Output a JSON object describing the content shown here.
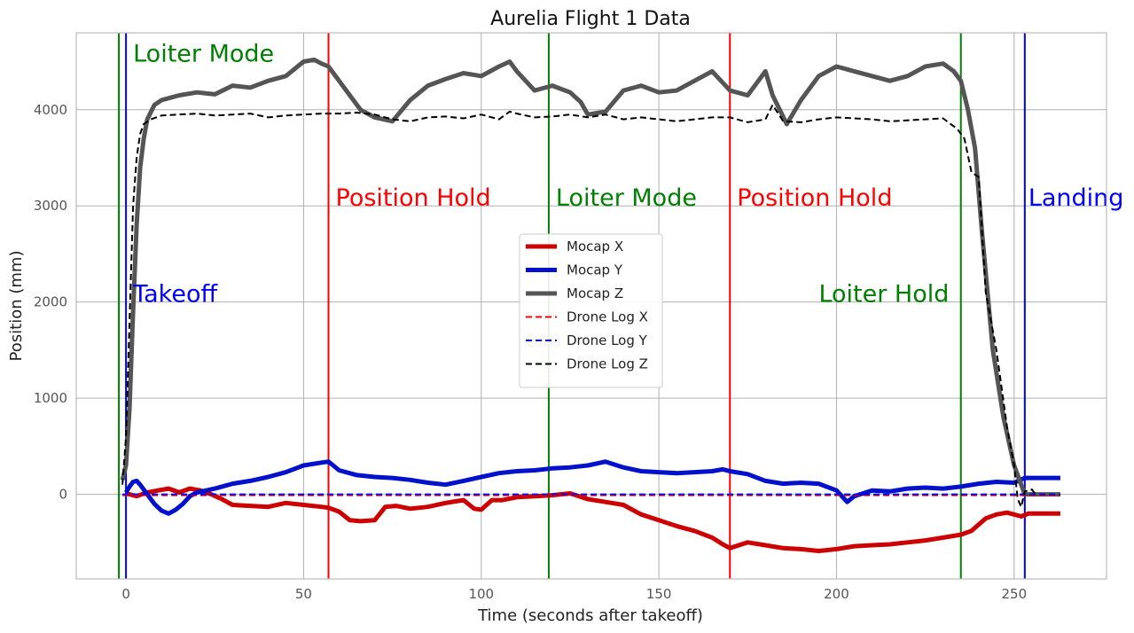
{
  "chart_data": {
    "type": "line",
    "title": "Aurelia Flight 1 Data",
    "xlabel": "Time (seconds after takeoff)",
    "ylabel": "Position (mm)",
    "xlim": [
      -14,
      276
    ],
    "ylim": [
      -880,
      4800
    ],
    "xticks": [
      0,
      50,
      100,
      150,
      200,
      250
    ],
    "yticks": [
      0,
      1000,
      2000,
      3000,
      4000
    ],
    "grid": true,
    "legend_position": "center",
    "series": [
      {
        "name": "Mocap X",
        "color": "#cc0000",
        "style": "solid",
        "width": 5,
        "x": [
          0,
          3,
          6,
          9,
          12,
          15,
          18,
          21,
          24,
          27,
          30,
          35,
          40,
          45,
          50,
          55,
          57,
          60,
          63,
          66,
          70,
          73,
          76,
          80,
          85,
          90,
          95,
          98,
          100,
          103,
          106,
          110,
          115,
          120,
          125,
          130,
          135,
          140,
          145,
          150,
          155,
          160,
          165,
          168,
          170,
          175,
          180,
          185,
          190,
          195,
          200,
          205,
          210,
          215,
          220,
          225,
          230,
          235,
          238,
          242,
          245,
          248,
          250,
          252,
          254,
          256,
          263
        ],
        "y": [
          10,
          -20,
          20,
          40,
          60,
          20,
          60,
          40,
          0,
          -50,
          -110,
          -120,
          -130,
          -90,
          -110,
          -130,
          -140,
          -180,
          -270,
          -280,
          -270,
          -130,
          -120,
          -150,
          -130,
          -90,
          -60,
          -150,
          -160,
          -60,
          -60,
          -30,
          -20,
          -10,
          10,
          -50,
          -80,
          -110,
          -210,
          -270,
          -330,
          -380,
          -450,
          -520,
          -560,
          -500,
          -530,
          -560,
          -570,
          -590,
          -570,
          -540,
          -530,
          -520,
          -500,
          -480,
          -450,
          -420,
          -380,
          -250,
          -210,
          -190,
          -210,
          -230,
          -200,
          -200,
          -200
        ]
      },
      {
        "name": "Mocap Y",
        "color": "#0011cc",
        "style": "solid",
        "width": 5,
        "x": [
          0,
          1,
          2,
          3,
          4,
          6,
          8,
          10,
          12,
          14,
          16,
          18,
          20,
          25,
          30,
          35,
          40,
          45,
          50,
          55,
          57,
          60,
          65,
          70,
          75,
          80,
          85,
          90,
          95,
          100,
          105,
          110,
          115,
          120,
          125,
          130,
          135,
          140,
          145,
          150,
          155,
          160,
          165,
          168,
          170,
          175,
          180,
          185,
          190,
          195,
          200,
          203,
          205,
          210,
          215,
          220,
          225,
          230,
          235,
          240,
          245,
          250,
          253,
          256,
          263
        ],
        "y": [
          20,
          80,
          130,
          140,
          100,
          0,
          -100,
          -170,
          -200,
          -160,
          -100,
          -20,
          20,
          60,
          110,
          140,
          180,
          230,
          300,
          330,
          340,
          250,
          200,
          180,
          170,
          150,
          120,
          100,
          140,
          180,
          220,
          240,
          250,
          270,
          280,
          300,
          340,
          280,
          240,
          230,
          220,
          230,
          240,
          260,
          240,
          210,
          140,
          110,
          120,
          110,
          40,
          -80,
          -20,
          40,
          30,
          60,
          70,
          60,
          80,
          110,
          130,
          120,
          170,
          170,
          170
        ]
      },
      {
        "name": "Mocap Z",
        "color": "#555555",
        "style": "solid",
        "width": 5,
        "x": [
          -1,
          0,
          1,
          2,
          3,
          4,
          5,
          6,
          8,
          10,
          15,
          20,
          25,
          30,
          35,
          40,
          45,
          50,
          53,
          55,
          57,
          60,
          63,
          66,
          70,
          75,
          80,
          85,
          90,
          95,
          100,
          105,
          108,
          110,
          115,
          120,
          125,
          128,
          130,
          135,
          140,
          145,
          150,
          155,
          160,
          165,
          170,
          175,
          180,
          182,
          186,
          190,
          195,
          200,
          205,
          210,
          215,
          220,
          225,
          230,
          233,
          235,
          237,
          239,
          241,
          244,
          247,
          250,
          253,
          256,
          263
        ],
        "y": [
          150,
          300,
          900,
          1900,
          2800,
          3400,
          3700,
          3900,
          4050,
          4100,
          4150,
          4180,
          4160,
          4250,
          4230,
          4300,
          4350,
          4500,
          4520,
          4480,
          4450,
          4300,
          4150,
          4000,
          3920,
          3880,
          4100,
          4250,
          4320,
          4380,
          4350,
          4450,
          4500,
          4400,
          4200,
          4250,
          4180,
          4080,
          3950,
          3980,
          4200,
          4250,
          4180,
          4200,
          4300,
          4400,
          4200,
          4150,
          4400,
          4150,
          3850,
          4100,
          4350,
          4450,
          4400,
          4350,
          4300,
          4350,
          4450,
          4480,
          4400,
          4300,
          4000,
          3600,
          2700,
          1500,
          800,
          300,
          0,
          0,
          0
        ]
      },
      {
        "name": "Drone Log X",
        "color": "#ff0000",
        "style": "dashed",
        "width": 2,
        "x": [
          -1,
          263
        ],
        "y": [
          -10,
          -10
        ]
      },
      {
        "name": "Drone Log Y",
        "color": "#0000ff",
        "style": "dashed",
        "width": 2,
        "x": [
          -1,
          263
        ],
        "y": [
          0,
          0
        ]
      },
      {
        "name": "Drone Log Z",
        "color": "#000000",
        "style": "dashed",
        "width": 2,
        "x": [
          -1,
          0,
          1,
          2,
          3,
          4,
          5,
          7,
          10,
          15,
          20,
          25,
          30,
          35,
          40,
          45,
          50,
          55,
          60,
          65,
          70,
          75,
          80,
          85,
          90,
          95,
          100,
          105,
          108,
          110,
          115,
          120,
          125,
          130,
          135,
          140,
          145,
          150,
          155,
          160,
          165,
          170,
          175,
          180,
          182,
          185,
          190,
          195,
          200,
          205,
          210,
          215,
          220,
          225,
          230,
          234,
          236,
          238,
          240,
          242,
          245,
          248,
          250,
          251,
          252,
          253,
          255,
          256
        ],
        "y": [
          100,
          600,
          1800,
          3000,
          3500,
          3750,
          3850,
          3900,
          3940,
          3950,
          3960,
          3940,
          3950,
          3960,
          3920,
          3940,
          3950,
          3960,
          3960,
          3970,
          3950,
          3900,
          3880,
          3920,
          3930,
          3910,
          3950,
          3900,
          3980,
          3960,
          3920,
          3930,
          3950,
          3920,
          3950,
          3900,
          3920,
          3900,
          3880,
          3900,
          3920,
          3920,
          3870,
          3900,
          4050,
          3880,
          3870,
          3900,
          3920,
          3910,
          3900,
          3880,
          3890,
          3900,
          3910,
          3800,
          3700,
          3350,
          3300,
          2100,
          1500,
          700,
          300,
          -50,
          -130,
          30,
          50,
          0
        ]
      }
    ],
    "vlines": [
      {
        "x": -2,
        "color": "#008000"
      },
      {
        "x": 0,
        "color": "#0000ff"
      },
      {
        "x": 57,
        "color": "#ff0000"
      },
      {
        "x": 119,
        "color": "#008000"
      },
      {
        "x": 170,
        "color": "#ff0000"
      },
      {
        "x": 235,
        "color": "#008000"
      },
      {
        "x": 253,
        "color": "#0000ff"
      }
    ],
    "annotations": [
      {
        "text": "Loiter Mode",
        "x": 2,
        "y": 4500,
        "color": "#008000",
        "size": 24
      },
      {
        "text": "Takeoff",
        "x": 2,
        "y": 2000,
        "color": "#0000ff",
        "size": 27
      },
      {
        "text": "Position Hold",
        "x": 59,
        "y": 3000,
        "color": "#ff0000",
        "size": 27
      },
      {
        "text": "Loiter Mode",
        "x": 121,
        "y": 3000,
        "color": "#008000",
        "size": 27
      },
      {
        "text": "Position Hold",
        "x": 172,
        "y": 3000,
        "color": "#ff0000",
        "size": 27
      },
      {
        "text": "Loiter Hold",
        "x": 195,
        "y": 2000,
        "color": "#008000",
        "size": 27
      },
      {
        "text": "Landing",
        "x": 254,
        "y": 3000,
        "color": "#0000ff",
        "size": 27
      }
    ]
  }
}
